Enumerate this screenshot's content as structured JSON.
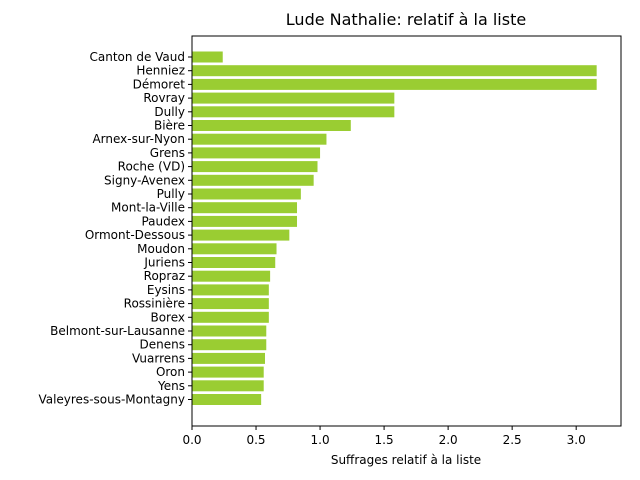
{
  "chart_data": {
    "type": "bar",
    "orientation": "horizontal",
    "title": "Lude Nathalie: relatif à la liste",
    "xlabel": "Suffrages relatif à la liste",
    "ylabel": "",
    "xlim": [
      0,
      3.35
    ],
    "xticks": [
      0.0,
      0.5,
      1.0,
      1.5,
      2.0,
      2.5,
      3.0
    ],
    "xtick_labels": [
      "0.0",
      "0.5",
      "1.0",
      "1.5",
      "2.0",
      "2.5",
      "3.0"
    ],
    "grid": false,
    "bar_color": "#9acd32",
    "categories": [
      "Canton de Vaud",
      "Henniez",
      "Démoret",
      "Rovray",
      "Dully",
      "Bière",
      "Arnex-sur-Nyon",
      "Grens",
      "Roche (VD)",
      "Signy-Avenex",
      "Pully",
      "Mont-la-Ville",
      "Paudex",
      "Ormont-Dessous",
      "Moudon",
      "Juriens",
      "Ropraz",
      "Eysins",
      "Rossinière",
      "Borex",
      "Belmont-sur-Lausanne",
      "Denens",
      "Vuarrens",
      "Oron",
      "Yens",
      "Valeyres-sous-Montagny"
    ],
    "values": [
      0.24,
      3.16,
      3.16,
      1.58,
      1.58,
      1.24,
      1.05,
      1.0,
      0.98,
      0.95,
      0.85,
      0.82,
      0.82,
      0.76,
      0.66,
      0.65,
      0.61,
      0.6,
      0.6,
      0.6,
      0.58,
      0.58,
      0.57,
      0.56,
      0.56,
      0.54
    ]
  }
}
